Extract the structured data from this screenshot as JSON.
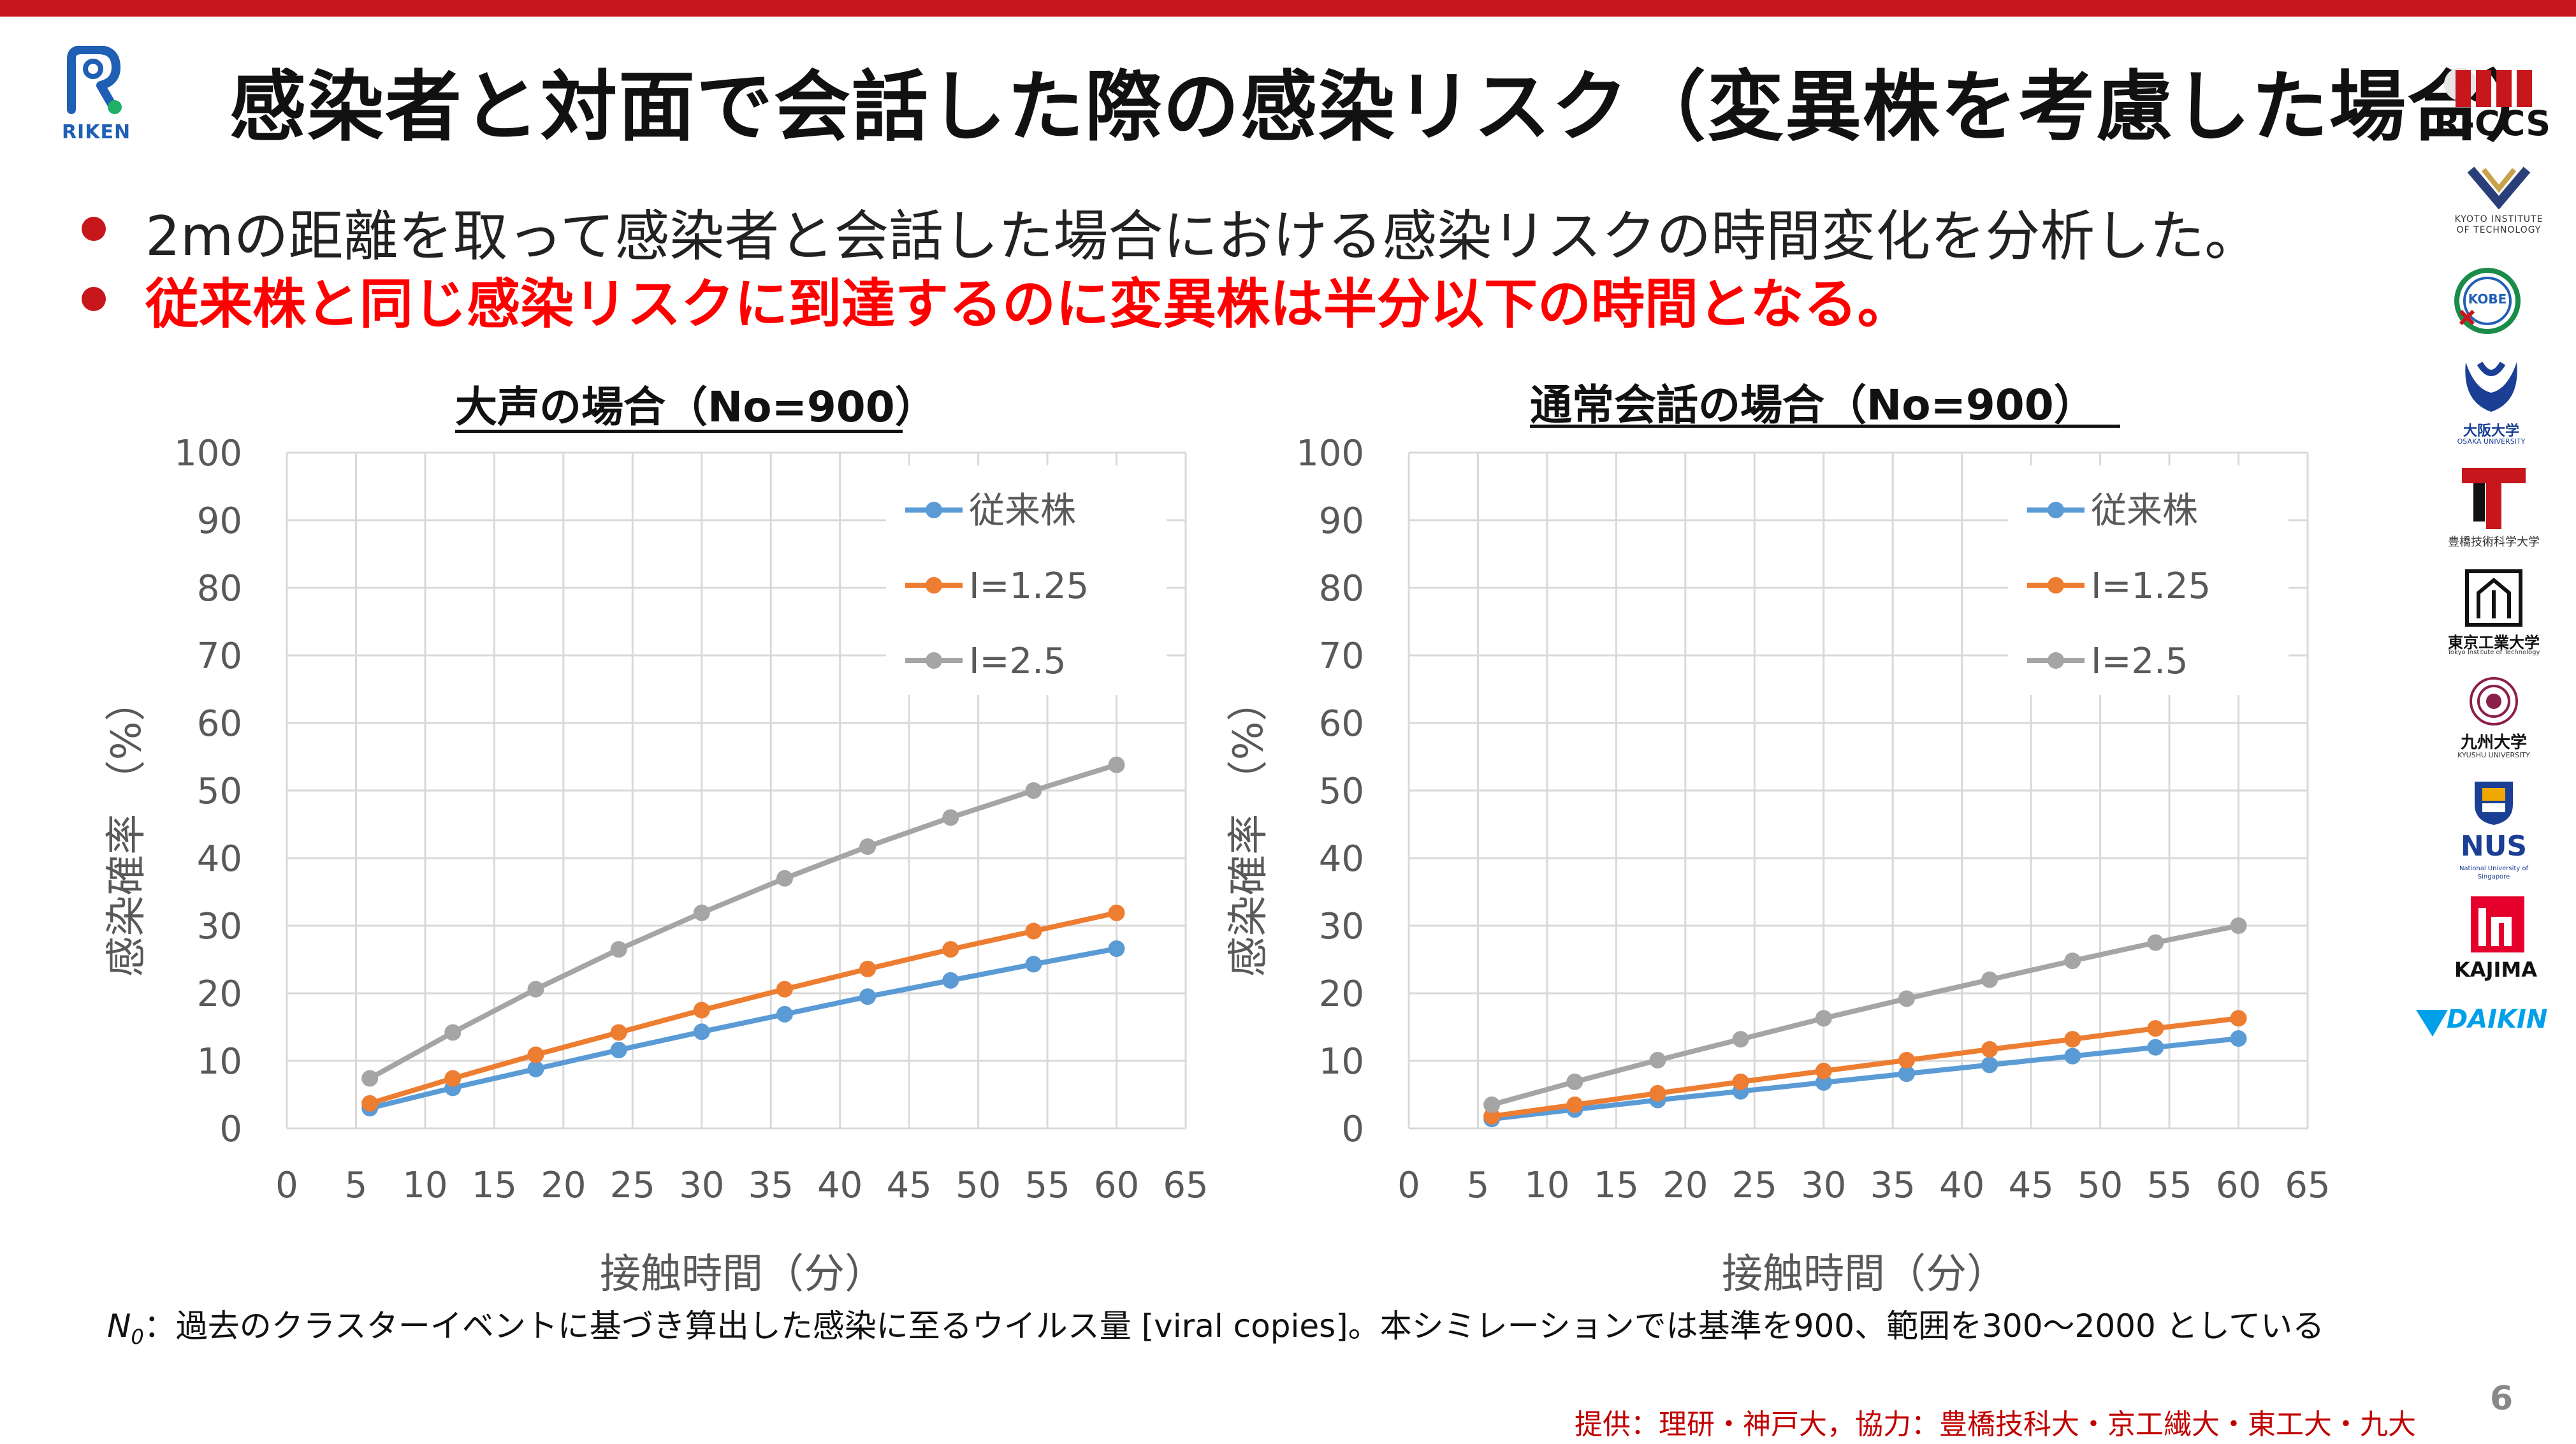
{
  "colors": {
    "accent_red": "#c8161d",
    "highlight_red": "#ff0000",
    "series_blue": "#5b9bd5",
    "series_orange": "#ed7d31",
    "series_gray": "#a5a5a5",
    "grid": "#d9d9d9",
    "axis_text": "#595959"
  },
  "header": {
    "logo_text": "RIKEN",
    "title": "感染者と対面で会話した際の感染リスク（変異株を考慮した場合）"
  },
  "bullets": [
    "2mの距離を取って感染者と会話した場合における感染リスクの時間変化を分析した。",
    "従来株と同じ感染リスクに到達するのに変異株は半分以下の時間となる。"
  ],
  "partners": {
    "rccs": "R-CCS",
    "kyoto": "KYOTO INSTITUTE OF TECHNOLOGY",
    "kobe": "KOBE UNIVERSITY",
    "osaka": "大阪大学",
    "osaka_en": "OSAKA UNIVERSITY",
    "toyohashi": "豊橋技術科学大学",
    "titech": "東京工業大学",
    "titech_en": "Tokyo Institute of Technology",
    "kyushu": "九州大学",
    "kyushu_en": "KYUSHU UNIVERSITY",
    "nus": "NUS",
    "nus_en": "National University of Singapore",
    "kajima": "KAJIMA",
    "daikin": "DAIKIN"
  },
  "chart_data": [
    {
      "type": "line",
      "title": "大声の場合（No=900）",
      "xlabel": "接触時間（分）",
      "ylabel": "感染確率 （%）",
      "xlim": [
        0,
        65
      ],
      "ylim": [
        0,
        100
      ],
      "xticks": [
        0,
        5,
        10,
        15,
        20,
        25,
        30,
        35,
        40,
        45,
        50,
        55,
        60,
        65
      ],
      "yticks": [
        0,
        10,
        20,
        30,
        40,
        50,
        60,
        70,
        80,
        90,
        100
      ],
      "grid": true,
      "legend_position": "top-right",
      "x": [
        6,
        12,
        18,
        24,
        30,
        36,
        42,
        48,
        54,
        60
      ],
      "series": [
        {
          "name": "従来株",
          "color": "#5b9bd5",
          "values": [
            3.0,
            6.0,
            8.8,
            11.6,
            14.3,
            16.9,
            19.5,
            21.9,
            24.3,
            26.6
          ]
        },
        {
          "name": "I=1.25",
          "color": "#ed7d31",
          "values": [
            3.7,
            7.4,
            10.9,
            14.2,
            17.5,
            20.6,
            23.6,
            26.5,
            29.2,
            31.9
          ]
        },
        {
          "name": "I=2.5",
          "color": "#a5a5a5",
          "values": [
            7.4,
            14.2,
            20.6,
            26.5,
            31.9,
            37.0,
            41.7,
            46.0,
            50.0,
            53.8
          ]
        }
      ]
    },
    {
      "type": "line",
      "title": "通常会話の場合（No=900）",
      "xlabel": "接触時間（分）",
      "ylabel": "感染確率 （%）",
      "xlim": [
        0,
        65
      ],
      "ylim": [
        0,
        100
      ],
      "xticks": [
        0,
        5,
        10,
        15,
        20,
        25,
        30,
        35,
        40,
        45,
        50,
        55,
        60,
        65
      ],
      "yticks": [
        0,
        10,
        20,
        30,
        40,
        50,
        60,
        70,
        80,
        90,
        100
      ],
      "grid": true,
      "legend_position": "top-right",
      "x": [
        6,
        12,
        18,
        24,
        30,
        36,
        42,
        48,
        54,
        60
      ],
      "series": [
        {
          "name": "従来株",
          "color": "#5b9bd5",
          "values": [
            1.4,
            2.8,
            4.2,
            5.5,
            6.8,
            8.1,
            9.4,
            10.7,
            12.0,
            13.3
          ]
        },
        {
          "name": "I=1.25",
          "color": "#ed7d31",
          "values": [
            1.8,
            3.5,
            5.2,
            6.9,
            8.5,
            10.1,
            11.7,
            13.2,
            14.8,
            16.3
          ]
        },
        {
          "name": "I=2.5",
          "color": "#a5a5a5",
          "values": [
            3.5,
            6.9,
            10.1,
            13.2,
            16.3,
            19.2,
            22.0,
            24.8,
            27.5,
            30.0
          ]
        }
      ]
    }
  ],
  "footnote": {
    "symbol": "N",
    "subscript": "0",
    "text": "：過去のクラスターイベントに基づき算出した感染に至るウイルス量 [viral copies]。本シミレーションでは基準を900、範囲を300～2000 としている"
  },
  "credit": "提供：理研・神戸大，協力：豊橋技科大・京工繊大・東工大・九大",
  "page_number": "6"
}
